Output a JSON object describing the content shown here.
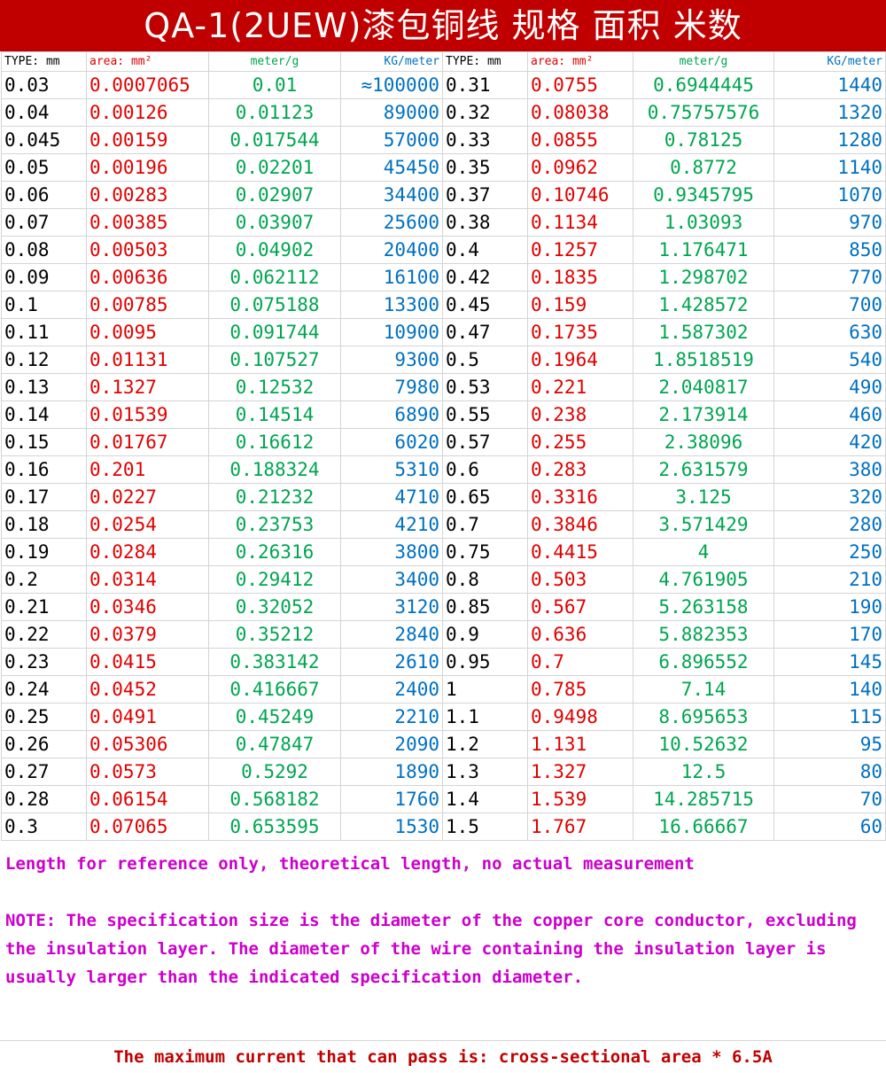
{
  "title": "QA-1(2UEW)漆包铜线 规格 面积 米数",
  "headers": [
    "TYPE: mm",
    "area: mm²",
    "meter/g",
    "KG/meter",
    "TYPE: mm",
    "area: mm²",
    "meter/g",
    "KG/meter"
  ],
  "rows": [
    [
      "0.03",
      "0.0007065",
      "0.01",
      "≈100000",
      "0.31",
      "0.0755",
      "0.6944445",
      "1440"
    ],
    [
      "0.04",
      "0.00126",
      "0.01123",
      "89000",
      "0.32",
      "0.08038",
      "0.75757576",
      "1320"
    ],
    [
      "0.045",
      "0.00159",
      "0.017544",
      "57000",
      "0.33",
      "0.0855",
      "0.78125",
      "1280"
    ],
    [
      "0.05",
      "0.00196",
      "0.02201",
      "45450",
      "0.35",
      "0.0962",
      "0.8772",
      "1140"
    ],
    [
      "0.06",
      "0.00283",
      "0.02907",
      "34400",
      "0.37",
      "0.10746",
      "0.9345795",
      "1070"
    ],
    [
      "0.07",
      "0.00385",
      "0.03907",
      "25600",
      "0.38",
      "0.1134",
      "1.03093",
      "970"
    ],
    [
      "0.08",
      "0.00503",
      "0.04902",
      "20400",
      "0.4",
      "0.1257",
      "1.176471",
      "850"
    ],
    [
      "0.09",
      "0.00636",
      "0.062112",
      "16100",
      "0.42",
      "0.1835",
      "1.298702",
      "770"
    ],
    [
      "0.1",
      "0.00785",
      "0.075188",
      "13300",
      "0.45",
      "0.159",
      "1.428572",
      "700"
    ],
    [
      "0.11",
      "0.0095",
      "0.091744",
      "10900",
      "0.47",
      "0.1735",
      "1.587302",
      "630"
    ],
    [
      "0.12",
      "0.01131",
      "0.107527",
      "9300",
      "0.5",
      "0.1964",
      "1.8518519",
      "540"
    ],
    [
      "0.13",
      "0.1327",
      "0.12532",
      "7980",
      "0.53",
      "0.221",
      "2.040817",
      "490"
    ],
    [
      "0.14",
      "0.01539",
      "0.14514",
      "6890",
      "0.55",
      "0.238",
      "2.173914",
      "460"
    ],
    [
      "0.15",
      "0.01767",
      "0.16612",
      "6020",
      "0.57",
      "0.255",
      "2.38096",
      "420"
    ],
    [
      "0.16",
      "0.201",
      "0.188324",
      "5310",
      "0.6",
      "0.283",
      "2.631579",
      "380"
    ],
    [
      "0.17",
      "0.0227",
      "0.21232",
      "4710",
      "0.65",
      "0.3316",
      "3.125",
      "320"
    ],
    [
      "0.18",
      "0.0254",
      "0.23753",
      "4210",
      "0.7",
      "0.3846",
      "3.571429",
      "280"
    ],
    [
      "0.19",
      "0.0284",
      "0.26316",
      "3800",
      "0.75",
      "0.4415",
      "4",
      "250"
    ],
    [
      "0.2",
      "0.0314",
      "0.29412",
      "3400",
      "0.8",
      "0.503",
      "4.761905",
      "210"
    ],
    [
      "0.21",
      "0.0346",
      "0.32052",
      "3120",
      "0.85",
      "0.567",
      "5.263158",
      "190"
    ],
    [
      "0.22",
      "0.0379",
      "0.35212",
      "2840",
      "0.9",
      "0.636",
      "5.882353",
      "170"
    ],
    [
      "0.23",
      "0.0415",
      "0.383142",
      "2610",
      "0.95",
      "0.7",
      "6.896552",
      "145"
    ],
    [
      "0.24",
      "0.0452",
      "0.416667",
      "2400",
      "1",
      "0.785",
      "7.14",
      "140"
    ],
    [
      "0.25",
      "0.0491",
      "0.45249",
      "2210",
      "1.1",
      "0.9498",
      "8.695653",
      "115"
    ],
    [
      "0.26",
      "0.05306",
      "0.47847",
      "2090",
      "1.2",
      "1.131",
      "10.52632",
      "95"
    ],
    [
      "0.27",
      "0.0573",
      "0.5292",
      "1890",
      "1.3",
      "1.327",
      "12.5",
      "80"
    ],
    [
      "0.28",
      "0.06154",
      "0.568182",
      "1760",
      "1.4",
      "1.539",
      "14.285715",
      "70"
    ],
    [
      "0.3",
      "0.07065",
      "0.653595",
      "1530",
      "1.5",
      "1.767",
      "16.66667",
      "60"
    ]
  ],
  "notes": {
    "reference": "Length for reference only, theoretical length, no actual measurement",
    "note": "NOTE: The specification size is the diameter of the copper core conductor, excluding the insulation layer. The diameter of the wire containing the insulation layer is usually larger than the indicated specification diameter."
  },
  "footer": "The maximum current that can pass is: cross-sectional area * 6.5A",
  "colors": {
    "title_bg": "#c00000",
    "type": "#000000",
    "area": "#e00000",
    "meter_per_g": "#00a550",
    "kg_per_meter": "#0070c0",
    "notes": "#cc00cc",
    "footer": "#c00000"
  }
}
